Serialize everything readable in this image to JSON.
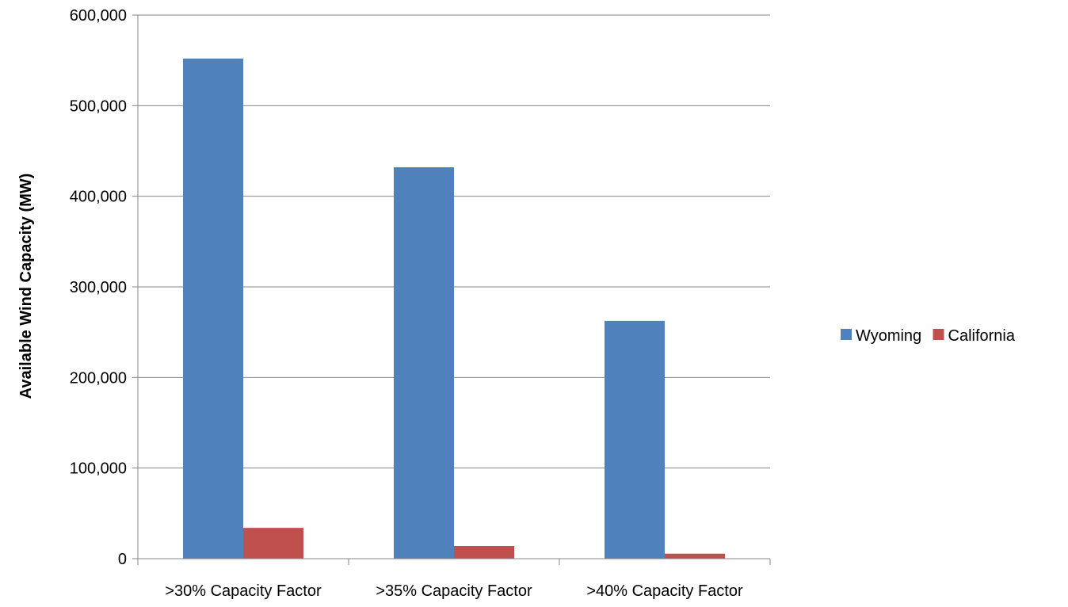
{
  "chart_data": {
    "type": "bar",
    "title": "",
    "xlabel": "",
    "ylabel": "Available Wind Capacity (MW)",
    "categories": [
      ">30% Capacity Factor",
      ">35% Capacity Factor",
      ">40% Capacity Factor"
    ],
    "series": [
      {
        "name": "Wyoming",
        "values": [
          552000,
          432000,
          262500
        ],
        "color": "#4F81BD"
      },
      {
        "name": "California",
        "values": [
          34000,
          14000,
          5500
        ],
        "color": "#C0504D"
      }
    ],
    "ylim": [
      0,
      600000
    ],
    "yticks": [
      0,
      100000,
      200000,
      300000,
      400000,
      500000,
      600000
    ],
    "ytick_labels": [
      "0",
      "100,000",
      "200,000",
      "300,000",
      "400,000",
      "500,000",
      "600,000"
    ],
    "grid": true,
    "legend_position": "right"
  }
}
